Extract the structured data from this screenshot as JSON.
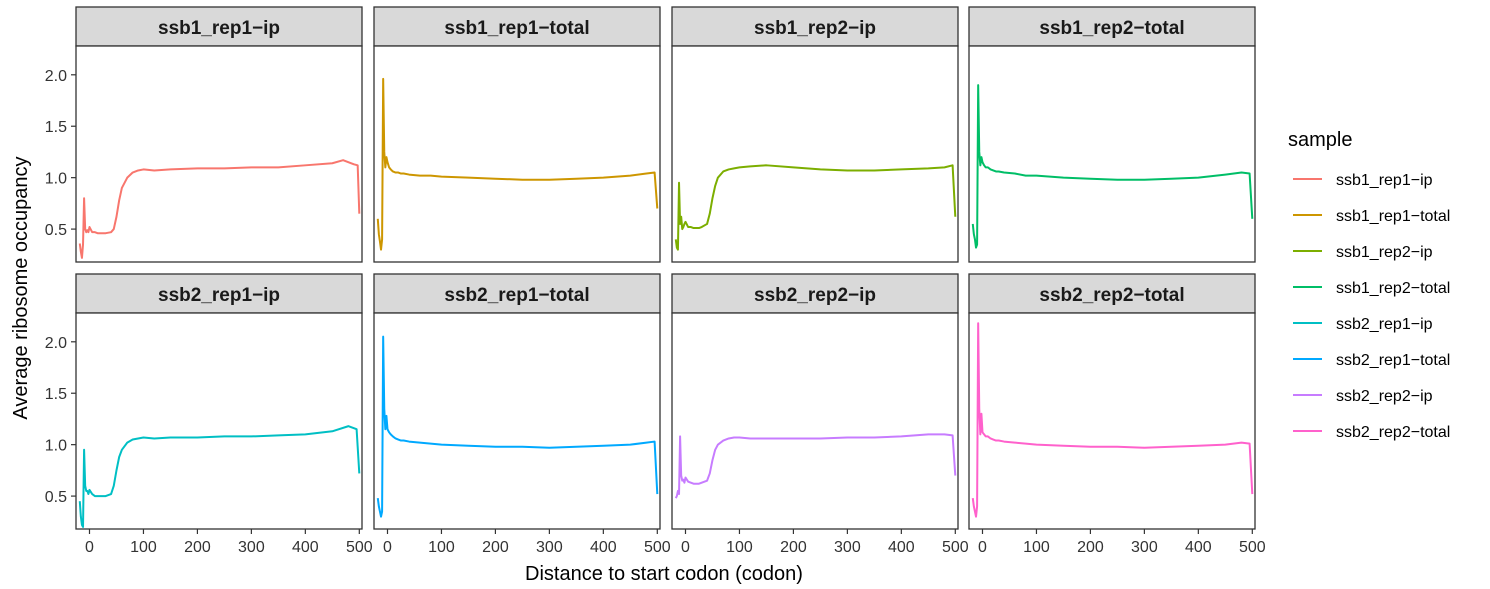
{
  "chart_data": {
    "type": "line",
    "facet_layout": "4 columns x 2 rows, shared axes",
    "xlabel": "Distance to start codon (codon)",
    "ylabel": "Average ribosome occupancy",
    "xlim": [
      -25,
      505
    ],
    "ylim": [
      0.18,
      2.28
    ],
    "x_ticks": [
      0,
      100,
      200,
      300,
      400,
      500
    ],
    "y_ticks": [
      0.5,
      1.0,
      1.5,
      2.0
    ],
    "y_tick_labels": [
      "0.5",
      "1.0",
      "1.5",
      "2.0"
    ],
    "grid": false,
    "legend": {
      "title": "sample",
      "position": "right"
    },
    "series": [
      {
        "name": "ssb1_rep1−ip",
        "color": "#F8766D",
        "x": [
          -18,
          -16,
          -14,
          -12,
          -10,
          -8,
          -6,
          -4,
          -2,
          0,
          5,
          10,
          15,
          20,
          25,
          30,
          40,
          45,
          50,
          55,
          60,
          70,
          80,
          90,
          100,
          120,
          150,
          200,
          250,
          300,
          350,
          400,
          450,
          470,
          490,
          497,
          500
        ],
        "y": [
          0.36,
          0.28,
          0.22,
          0.35,
          0.8,
          0.5,
          0.47,
          0.49,
          0.47,
          0.52,
          0.47,
          0.47,
          0.46,
          0.46,
          0.46,
          0.46,
          0.47,
          0.5,
          0.62,
          0.78,
          0.9,
          1.0,
          1.05,
          1.07,
          1.08,
          1.07,
          1.08,
          1.09,
          1.09,
          1.1,
          1.1,
          1.12,
          1.14,
          1.17,
          1.13,
          1.12,
          0.65
        ]
      },
      {
        "name": "ssb1_rep1−total",
        "color": "#CD9600",
        "x": [
          -18,
          -16,
          -14,
          -12,
          -10,
          -8,
          -6,
          -4,
          -2,
          0,
          3,
          6,
          10,
          15,
          20,
          25,
          30,
          40,
          60,
          80,
          100,
          150,
          200,
          250,
          300,
          350,
          400,
          450,
          480,
          495,
          500
        ],
        "y": [
          0.6,
          0.45,
          0.38,
          0.3,
          0.4,
          1.96,
          1.25,
          1.1,
          1.2,
          1.15,
          1.1,
          1.08,
          1.06,
          1.05,
          1.05,
          1.04,
          1.04,
          1.03,
          1.02,
          1.02,
          1.01,
          1.0,
          0.99,
          0.98,
          0.98,
          0.99,
          1.0,
          1.02,
          1.04,
          1.05,
          0.7
        ]
      },
      {
        "name": "ssb1_rep2−ip",
        "color": "#7CAE00",
        "x": [
          -18,
          -16,
          -14,
          -12,
          -10,
          -8,
          -6,
          -4,
          -2,
          0,
          5,
          10,
          15,
          20,
          25,
          30,
          40,
          45,
          50,
          55,
          60,
          70,
          80,
          90,
          100,
          120,
          150,
          200,
          250,
          300,
          350,
          400,
          450,
          480,
          495,
          500
        ],
        "y": [
          0.4,
          0.32,
          0.3,
          0.95,
          0.55,
          0.62,
          0.5,
          0.52,
          0.55,
          0.57,
          0.52,
          0.52,
          0.51,
          0.51,
          0.51,
          0.52,
          0.55,
          0.65,
          0.8,
          0.92,
          1.0,
          1.06,
          1.08,
          1.09,
          1.1,
          1.11,
          1.12,
          1.1,
          1.08,
          1.07,
          1.07,
          1.08,
          1.09,
          1.1,
          1.12,
          0.62
        ]
      },
      {
        "name": "ssb1_rep2−total",
        "color": "#00BE67",
        "x": [
          -18,
          -16,
          -14,
          -12,
          -10,
          -8,
          -6,
          -4,
          -2,
          0,
          3,
          6,
          10,
          15,
          20,
          25,
          30,
          40,
          60,
          80,
          100,
          150,
          200,
          250,
          300,
          350,
          400,
          450,
          480,
          495,
          500
        ],
        "y": [
          0.55,
          0.45,
          0.4,
          0.32,
          0.35,
          1.9,
          1.25,
          1.12,
          1.2,
          1.15,
          1.12,
          1.1,
          1.1,
          1.08,
          1.07,
          1.06,
          1.06,
          1.05,
          1.04,
          1.02,
          1.02,
          1.0,
          0.99,
          0.98,
          0.98,
          0.99,
          1.0,
          1.03,
          1.05,
          1.04,
          0.6
        ]
      },
      {
        "name": "ssb2_rep1−ip",
        "color": "#00BFC4",
        "x": [
          -18,
          -16,
          -14,
          -12,
          -10,
          -8,
          -6,
          -4,
          -2,
          0,
          5,
          10,
          15,
          20,
          25,
          30,
          40,
          45,
          50,
          55,
          60,
          70,
          80,
          90,
          100,
          120,
          150,
          200,
          250,
          300,
          350,
          400,
          450,
          480,
          495,
          500
        ],
        "y": [
          0.45,
          0.3,
          0.22,
          0.2,
          0.95,
          0.6,
          0.55,
          0.55,
          0.52,
          0.56,
          0.52,
          0.5,
          0.5,
          0.5,
          0.5,
          0.5,
          0.52,
          0.6,
          0.75,
          0.88,
          0.95,
          1.02,
          1.05,
          1.06,
          1.07,
          1.06,
          1.07,
          1.07,
          1.08,
          1.08,
          1.09,
          1.1,
          1.13,
          1.18,
          1.15,
          0.72
        ]
      },
      {
        "name": "ssb2_rep1−total",
        "color": "#00A9FF",
        "x": [
          -18,
          -16,
          -14,
          -12,
          -10,
          -8,
          -6,
          -4,
          -2,
          0,
          3,
          6,
          10,
          15,
          20,
          25,
          30,
          40,
          60,
          80,
          100,
          150,
          200,
          250,
          300,
          350,
          400,
          450,
          480,
          495,
          500
        ],
        "y": [
          0.48,
          0.4,
          0.35,
          0.3,
          0.35,
          2.05,
          1.35,
          1.15,
          1.28,
          1.15,
          1.12,
          1.1,
          1.08,
          1.06,
          1.05,
          1.04,
          1.04,
          1.03,
          1.02,
          1.01,
          1.0,
          0.99,
          0.98,
          0.98,
          0.97,
          0.98,
          0.99,
          1.0,
          1.02,
          1.03,
          0.52
        ]
      },
      {
        "name": "ssb2_rep2−ip",
        "color": "#C77CFF",
        "x": [
          -18,
          -16,
          -14,
          -12,
          -10,
          -8,
          -6,
          -4,
          -2,
          0,
          5,
          10,
          15,
          20,
          25,
          30,
          40,
          45,
          50,
          55,
          60,
          70,
          80,
          90,
          100,
          120,
          150,
          200,
          250,
          300,
          350,
          400,
          450,
          480,
          495,
          500
        ],
        "y": [
          0.48,
          0.5,
          0.55,
          0.52,
          1.08,
          0.7,
          0.65,
          0.66,
          0.63,
          0.68,
          0.64,
          0.63,
          0.62,
          0.62,
          0.62,
          0.63,
          0.65,
          0.72,
          0.85,
          0.95,
          1.0,
          1.04,
          1.06,
          1.07,
          1.07,
          1.06,
          1.06,
          1.06,
          1.06,
          1.07,
          1.07,
          1.08,
          1.1,
          1.1,
          1.09,
          0.7
        ]
      },
      {
        "name": "ssb2_rep2−total",
        "color": "#FF61CC",
        "x": [
          -18,
          -16,
          -14,
          -12,
          -10,
          -8,
          -6,
          -4,
          -2,
          0,
          3,
          6,
          10,
          15,
          20,
          25,
          30,
          40,
          60,
          80,
          100,
          150,
          200,
          250,
          300,
          350,
          400,
          450,
          480,
          495,
          500
        ],
        "y": [
          0.48,
          0.4,
          0.35,
          0.3,
          0.4,
          2.18,
          1.35,
          1.1,
          1.3,
          1.12,
          1.1,
          1.08,
          1.08,
          1.06,
          1.05,
          1.04,
          1.04,
          1.03,
          1.02,
          1.01,
          1.0,
          0.99,
          0.98,
          0.98,
          0.97,
          0.98,
          0.99,
          1.0,
          1.02,
          1.01,
          0.52
        ]
      }
    ]
  }
}
